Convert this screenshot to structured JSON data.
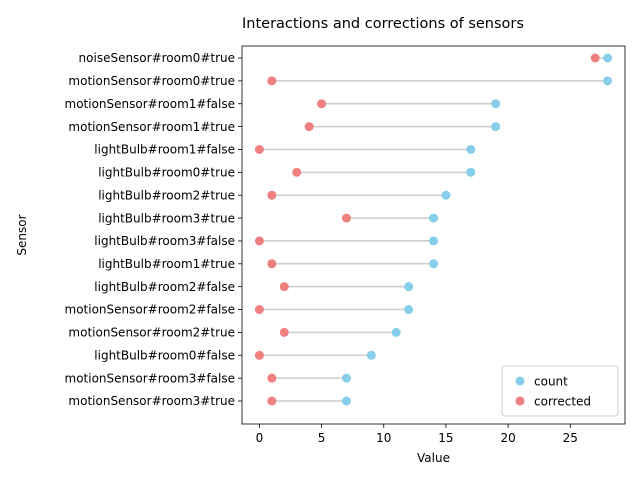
{
  "chart_data": {
    "type": "scatter",
    "subtype": "dumbbell",
    "title": "Interactions and corrections of sensors",
    "xlabel": "Value",
    "ylabel": "Sensor",
    "xlim": [
      -1.4,
      29.4
    ],
    "xticks": [
      0,
      5,
      10,
      15,
      20,
      25
    ],
    "grid": false,
    "legend_position": "lower-right",
    "categories": [
      "noiseSensor#room0#true",
      "motionSensor#room0#true",
      "motionSensor#room1#false",
      "motionSensor#room1#true",
      "lightBulb#room1#false",
      "lightBulb#room0#true",
      "lightBulb#room2#true",
      "lightBulb#room3#true",
      "lightBulb#room3#false",
      "lightBulb#room1#true",
      "lightBulb#room2#false",
      "motionSensor#room2#false",
      "motionSensor#room2#true",
      "lightBulb#room0#false",
      "motionSensor#room3#false",
      "motionSensor#room3#true"
    ],
    "series": [
      {
        "name": "count",
        "color": "#87ceeb",
        "values": [
          28,
          28,
          19,
          19,
          17,
          17,
          15,
          14,
          14,
          14,
          12,
          12,
          11,
          9,
          7,
          7
        ]
      },
      {
        "name": "corrected",
        "color": "#f08080",
        "values": [
          27,
          1,
          5,
          4,
          0,
          3,
          1,
          7,
          0,
          1,
          2,
          0,
          2,
          0,
          1,
          1
        ]
      }
    ],
    "connector_color": "#cccccc"
  }
}
